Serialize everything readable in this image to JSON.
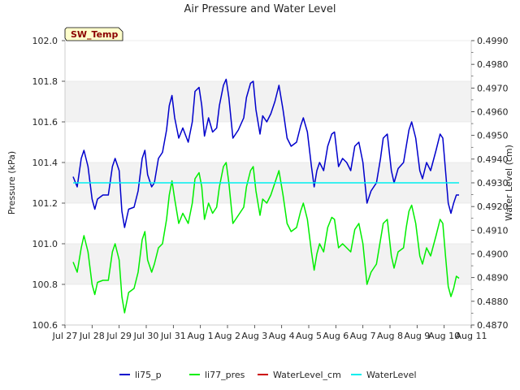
{
  "chart_data": {
    "type": "line",
    "title": "Air Pressure and Water Level",
    "badge": "SW_Temp",
    "ylabel": "Pressure (kPa)",
    "y2label": "Water Level (cm)",
    "xlim": [
      0,
      15
    ],
    "ylim": [
      100.6,
      102.0
    ],
    "y2lim": [
      0.487,
      0.499
    ],
    "x_ticks": [
      {
        "x": 0,
        "label": "Jul 27"
      },
      {
        "x": 1,
        "label": "Jul 28"
      },
      {
        "x": 2,
        "label": "Jul 29"
      },
      {
        "x": 3,
        "label": "Jul 30"
      },
      {
        "x": 4,
        "label": "Jul 31"
      },
      {
        "x": 5,
        "label": "Aug 1"
      },
      {
        "x": 6,
        "label": "Aug 2"
      },
      {
        "x": 7,
        "label": "Aug 3"
      },
      {
        "x": 8,
        "label": "Aug 4"
      },
      {
        "x": 9,
        "label": "Aug 5"
      },
      {
        "x": 10,
        "label": "Aug 6"
      },
      {
        "x": 11,
        "label": "Aug 7"
      },
      {
        "x": 12,
        "label": "Aug 8"
      },
      {
        "x": 13,
        "label": "Aug 9"
      },
      {
        "x": 14,
        "label": "Aug 10"
      },
      {
        "x": 15,
        "label": "Aug 11"
      }
    ],
    "y_ticks": [
      {
        "v": 100.6,
        "label": "100.6"
      },
      {
        "v": 100.8,
        "label": "100.8"
      },
      {
        "v": 101.0,
        "label": "101.0"
      },
      {
        "v": 101.2,
        "label": "101.2"
      },
      {
        "v": 101.4,
        "label": "101.4"
      },
      {
        "v": 101.6,
        "label": "101.6"
      },
      {
        "v": 101.8,
        "label": "101.8"
      },
      {
        "v": 102.0,
        "label": "102.0"
      }
    ],
    "y2_ticks": [
      {
        "v": 0.487,
        "label": "0.4870"
      },
      {
        "v": 0.488,
        "label": "0.4880"
      },
      {
        "v": 0.489,
        "label": "0.4890"
      },
      {
        "v": 0.49,
        "label": "0.4900"
      },
      {
        "v": 0.491,
        "label": "0.4910"
      },
      {
        "v": 0.492,
        "label": "0.4920"
      },
      {
        "v": 0.493,
        "label": "0.4930"
      },
      {
        "v": 0.494,
        "label": "0.4940"
      },
      {
        "v": 0.495,
        "label": "0.4950"
      },
      {
        "v": 0.496,
        "label": "0.4960"
      },
      {
        "v": 0.497,
        "label": "0.4970"
      },
      {
        "v": 0.498,
        "label": "0.4980"
      },
      {
        "v": 0.499,
        "label": "0.4990"
      }
    ],
    "grid": "horizontal bands",
    "legend_position": "bottom",
    "series": [
      {
        "name": "li75_p",
        "color": "#0000cc",
        "axis": "left",
        "points": [
          [
            0.3,
            101.33
          ],
          [
            0.45,
            101.28
          ],
          [
            0.6,
            101.42
          ],
          [
            0.7,
            101.46
          ],
          [
            0.85,
            101.38
          ],
          [
            1.0,
            101.22
          ],
          [
            1.1,
            101.17
          ],
          [
            1.2,
            101.22
          ],
          [
            1.4,
            101.24
          ],
          [
            1.6,
            101.24
          ],
          [
            1.75,
            101.38
          ],
          [
            1.85,
            101.42
          ],
          [
            2.0,
            101.36
          ],
          [
            2.1,
            101.16
          ],
          [
            2.2,
            101.08
          ],
          [
            2.35,
            101.17
          ],
          [
            2.55,
            101.18
          ],
          [
            2.7,
            101.26
          ],
          [
            2.85,
            101.42
          ],
          [
            2.95,
            101.46
          ],
          [
            3.05,
            101.34
          ],
          [
            3.2,
            101.28
          ],
          [
            3.3,
            101.3
          ],
          [
            3.45,
            101.42
          ],
          [
            3.6,
            101.45
          ],
          [
            3.75,
            101.56
          ],
          [
            3.85,
            101.68
          ],
          [
            3.95,
            101.73
          ],
          [
            4.05,
            101.62
          ],
          [
            4.2,
            101.52
          ],
          [
            4.35,
            101.57
          ],
          [
            4.55,
            101.5
          ],
          [
            4.7,
            101.6
          ],
          [
            4.8,
            101.75
          ],
          [
            4.95,
            101.77
          ],
          [
            5.05,
            101.68
          ],
          [
            5.15,
            101.53
          ],
          [
            5.3,
            101.62
          ],
          [
            5.45,
            101.55
          ],
          [
            5.6,
            101.57
          ],
          [
            5.7,
            101.68
          ],
          [
            5.85,
            101.78
          ],
          [
            5.95,
            101.81
          ],
          [
            6.05,
            101.72
          ],
          [
            6.2,
            101.52
          ],
          [
            6.4,
            101.56
          ],
          [
            6.6,
            101.62
          ],
          [
            6.7,
            101.72
          ],
          [
            6.85,
            101.79
          ],
          [
            6.95,
            101.8
          ],
          [
            7.05,
            101.66
          ],
          [
            7.2,
            101.54
          ],
          [
            7.3,
            101.63
          ],
          [
            7.45,
            101.6
          ],
          [
            7.6,
            101.64
          ],
          [
            7.75,
            101.7
          ],
          [
            7.9,
            101.78
          ],
          [
            8.05,
            101.66
          ],
          [
            8.2,
            101.52
          ],
          [
            8.35,
            101.48
          ],
          [
            8.55,
            101.5
          ],
          [
            8.7,
            101.58
          ],
          [
            8.8,
            101.62
          ],
          [
            8.95,
            101.55
          ],
          [
            9.1,
            101.38
          ],
          [
            9.2,
            101.28
          ],
          [
            9.3,
            101.36
          ],
          [
            9.4,
            101.4
          ],
          [
            9.55,
            101.36
          ],
          [
            9.7,
            101.48
          ],
          [
            9.85,
            101.54
          ],
          [
            9.95,
            101.55
          ],
          [
            10.1,
            101.38
          ],
          [
            10.25,
            101.42
          ],
          [
            10.4,
            101.4
          ],
          [
            10.55,
            101.36
          ],
          [
            10.7,
            101.48
          ],
          [
            10.85,
            101.5
          ],
          [
            11.0,
            101.4
          ],
          [
            11.15,
            101.2
          ],
          [
            11.3,
            101.26
          ],
          [
            11.5,
            101.3
          ],
          [
            11.65,
            101.42
          ],
          [
            11.75,
            101.52
          ],
          [
            11.9,
            101.54
          ],
          [
            12.05,
            101.36
          ],
          [
            12.15,
            101.3
          ],
          [
            12.3,
            101.37
          ],
          [
            12.5,
            101.4
          ],
          [
            12.6,
            101.48
          ],
          [
            12.7,
            101.56
          ],
          [
            12.8,
            101.6
          ],
          [
            12.95,
            101.52
          ],
          [
            13.1,
            101.36
          ],
          [
            13.2,
            101.32
          ],
          [
            13.35,
            101.4
          ],
          [
            13.5,
            101.36
          ],
          [
            13.7,
            101.46
          ],
          [
            13.85,
            101.54
          ],
          [
            13.95,
            101.52
          ],
          [
            14.05,
            101.36
          ],
          [
            14.15,
            101.2
          ],
          [
            14.25,
            101.15
          ],
          [
            14.35,
            101.2
          ],
          [
            14.45,
            101.24
          ],
          [
            14.55,
            101.24
          ]
        ]
      },
      {
        "name": "li77_pres",
        "color": "#00ee00",
        "axis": "left",
        "points": [
          [
            0.3,
            100.91
          ],
          [
            0.45,
            100.86
          ],
          [
            0.6,
            100.98
          ],
          [
            0.7,
            101.04
          ],
          [
            0.85,
            100.96
          ],
          [
            1.0,
            100.8
          ],
          [
            1.1,
            100.75
          ],
          [
            1.2,
            100.81
          ],
          [
            1.4,
            100.82
          ],
          [
            1.6,
            100.82
          ],
          [
            1.75,
            100.96
          ],
          [
            1.85,
            101.0
          ],
          [
            2.0,
            100.92
          ],
          [
            2.1,
            100.74
          ],
          [
            2.2,
            100.66
          ],
          [
            2.35,
            100.76
          ],
          [
            2.55,
            100.78
          ],
          [
            2.7,
            100.86
          ],
          [
            2.85,
            101.02
          ],
          [
            2.95,
            101.06
          ],
          [
            3.05,
            100.92
          ],
          [
            3.2,
            100.86
          ],
          [
            3.3,
            100.9
          ],
          [
            3.45,
            100.98
          ],
          [
            3.6,
            101.0
          ],
          [
            3.75,
            101.12
          ],
          [
            3.85,
            101.24
          ],
          [
            3.95,
            101.31
          ],
          [
            4.05,
            101.22
          ],
          [
            4.2,
            101.1
          ],
          [
            4.35,
            101.15
          ],
          [
            4.55,
            101.1
          ],
          [
            4.7,
            101.2
          ],
          [
            4.8,
            101.32
          ],
          [
            4.95,
            101.35
          ],
          [
            5.05,
            101.28
          ],
          [
            5.15,
            101.12
          ],
          [
            5.3,
            101.2
          ],
          [
            5.45,
            101.15
          ],
          [
            5.6,
            101.18
          ],
          [
            5.7,
            101.28
          ],
          [
            5.85,
            101.38
          ],
          [
            5.95,
            101.4
          ],
          [
            6.05,
            101.3
          ],
          [
            6.2,
            101.1
          ],
          [
            6.4,
            101.14
          ],
          [
            6.6,
            101.18
          ],
          [
            6.7,
            101.28
          ],
          [
            6.85,
            101.36
          ],
          [
            6.95,
            101.38
          ],
          [
            7.05,
            101.26
          ],
          [
            7.2,
            101.14
          ],
          [
            7.3,
            101.22
          ],
          [
            7.45,
            101.2
          ],
          [
            7.6,
            101.24
          ],
          [
            7.75,
            101.3
          ],
          [
            7.9,
            101.36
          ],
          [
            8.05,
            101.24
          ],
          [
            8.2,
            101.1
          ],
          [
            8.35,
            101.06
          ],
          [
            8.55,
            101.08
          ],
          [
            8.7,
            101.16
          ],
          [
            8.8,
            101.2
          ],
          [
            8.95,
            101.12
          ],
          [
            9.1,
            100.96
          ],
          [
            9.2,
            100.87
          ],
          [
            9.3,
            100.95
          ],
          [
            9.4,
            101.0
          ],
          [
            9.55,
            100.96
          ],
          [
            9.7,
            101.08
          ],
          [
            9.85,
            101.13
          ],
          [
            9.95,
            101.12
          ],
          [
            10.1,
            100.98
          ],
          [
            10.25,
            101.0
          ],
          [
            10.4,
            100.98
          ],
          [
            10.55,
            100.96
          ],
          [
            10.7,
            101.07
          ],
          [
            10.85,
            101.1
          ],
          [
            11.0,
            101.0
          ],
          [
            11.15,
            100.8
          ],
          [
            11.3,
            100.86
          ],
          [
            11.5,
            100.9
          ],
          [
            11.65,
            101.02
          ],
          [
            11.75,
            101.1
          ],
          [
            11.9,
            101.12
          ],
          [
            12.05,
            100.94
          ],
          [
            12.15,
            100.88
          ],
          [
            12.3,
            100.96
          ],
          [
            12.5,
            100.98
          ],
          [
            12.6,
            101.08
          ],
          [
            12.7,
            101.16
          ],
          [
            12.8,
            101.19
          ],
          [
            12.95,
            101.1
          ],
          [
            13.1,
            100.94
          ],
          [
            13.2,
            100.9
          ],
          [
            13.35,
            100.98
          ],
          [
            13.5,
            100.94
          ],
          [
            13.7,
            101.04
          ],
          [
            13.85,
            101.12
          ],
          [
            13.95,
            101.1
          ],
          [
            14.05,
            100.94
          ],
          [
            14.15,
            100.79
          ],
          [
            14.25,
            100.74
          ],
          [
            14.35,
            100.78
          ],
          [
            14.45,
            100.84
          ],
          [
            14.55,
            100.83
          ]
        ]
      },
      {
        "name": "WaterLevel_cm",
        "color": "#cc0000",
        "axis": "right",
        "points": []
      },
      {
        "name": "WaterLevel",
        "color": "#00eeee",
        "axis": "right",
        "points": [
          [
            0.3,
            0.493
          ],
          [
            14.55,
            0.493
          ]
        ]
      }
    ]
  }
}
